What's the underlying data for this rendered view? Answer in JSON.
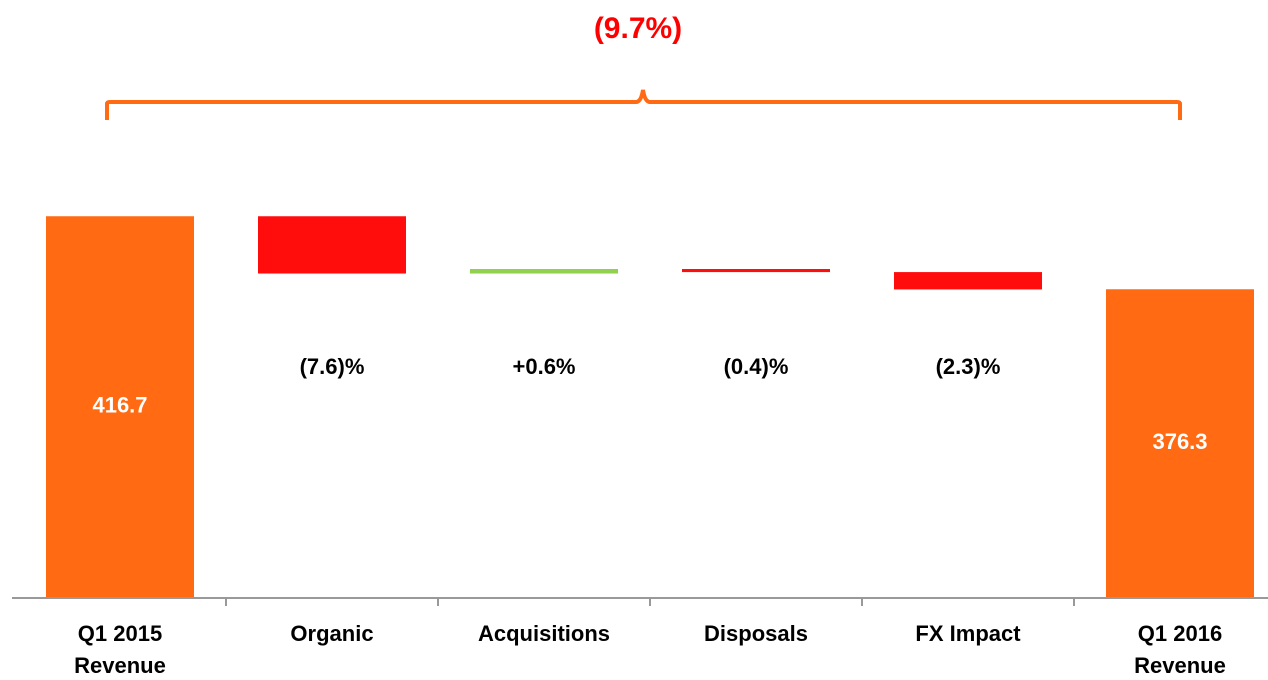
{
  "chart_data": {
    "type": "waterfall",
    "annotation": "(9.7%)",
    "categories": [
      "Q1 2015 Revenue",
      "Organic",
      "Acquisitions",
      "Disposals",
      "FX Impact",
      "Q1 2016 Revenue"
    ],
    "values": [
      416.7,
      -31.7,
      2.5,
      -1.7,
      -9.6,
      376.3
    ],
    "measure": [
      "total",
      "relative",
      "relative",
      "relative",
      "relative",
      "total"
    ],
    "change_labels": [
      "(7.6)%",
      "+0.6%",
      "(0.4)%",
      "(2.3)%"
    ],
    "colors": {
      "total": "#ff6a13",
      "increase": "#92d050",
      "decrease": "#ff0d0d"
    },
    "ylim": [
      206,
      460
    ]
  }
}
